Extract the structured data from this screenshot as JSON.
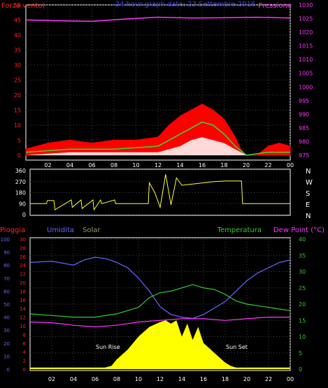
{
  "chart_data": [
    {
      "type": "line",
      "title": "24 hour graph date: 23 Settembre 2016",
      "left_label": "Forza vento(",
      "right_label": "Pressione",
      "x_ticks": [
        "02",
        "04",
        "06",
        "08",
        "10",
        "12",
        "14",
        "16",
        "18",
        "20",
        "22",
        "00"
      ],
      "y_left_ticks": [
        0,
        5,
        10,
        15,
        20,
        25,
        30,
        35,
        40,
        45,
        50
      ],
      "y_right_ticks": [
        975,
        980,
        985,
        990,
        995,
        1000,
        1005,
        1010,
        1015,
        1020,
        1025,
        1030
      ],
      "ylim_left": [
        0,
        50
      ],
      "ylim_right": [
        975,
        1030
      ],
      "pressure": {
        "color": "#ff33ff",
        "hours": [
          0,
          3,
          6,
          9,
          12,
          15,
          18,
          21,
          24
        ],
        "values": [
          1024.5,
          1024.2,
          1024.0,
          1024.8,
          1025.5,
          1025.2,
          1025.3,
          1025.5,
          1025.2
        ]
      },
      "gust": {
        "color": "#ff0000",
        "hours": [
          0,
          2,
          4,
          6,
          8,
          10,
          12,
          13,
          14,
          15,
          16,
          17,
          18,
          19,
          19.5,
          20,
          21,
          22,
          23,
          24
        ],
        "values": [
          2,
          4,
          5,
          4,
          5,
          5,
          6,
          10,
          13,
          15,
          17,
          15,
          12,
          6,
          2,
          0,
          0,
          3,
          4,
          3
        ]
      },
      "avg": {
        "color": "#33dd33",
        "hours": [
          0,
          4,
          8,
          12,
          13,
          14,
          15,
          16,
          17,
          18,
          19,
          20,
          22,
          24
        ],
        "values": [
          1,
          2,
          2,
          3,
          5,
          7,
          9,
          11,
          10,
          7,
          3,
          0,
          1,
          1
        ]
      },
      "low": {
        "color": "#ffffff",
        "hours": [
          0,
          4,
          8,
          12,
          14,
          15,
          16,
          17,
          18,
          19,
          20,
          22,
          24
        ],
        "values": [
          0,
          1,
          1,
          1,
          3,
          5,
          6,
          5,
          4,
          2,
          0,
          0,
          0
        ]
      }
    },
    {
      "type": "line",
      "y_ticks": [
        0,
        90,
        180,
        270,
        360
      ],
      "ylim": [
        0,
        360
      ],
      "right_labels": [
        "N",
        "W",
        "S",
        "E",
        "N"
      ],
      "direction": {
        "color": "#ffff33",
        "hours": [
          0,
          1.5,
          1.6,
          2.2,
          2.3,
          3.8,
          3.9,
          4.7,
          4.8,
          5.8,
          5.9,
          6.5,
          6.6,
          7.8,
          7.9,
          10.9,
          11,
          11.5,
          12,
          12.5,
          13,
          13.5,
          14,
          15,
          16,
          17,
          18,
          19,
          19.5,
          19.6,
          24
        ],
        "values": [
          90,
          90,
          115,
          115,
          40,
          120,
          60,
          120,
          50,
          120,
          40,
          120,
          90,
          120,
          90,
          90,
          260,
          180,
          60,
          330,
          80,
          300,
          240,
          250,
          260,
          270,
          275,
          275,
          275,
          90,
          90
        ]
      }
    },
    {
      "type": "area",
      "labels": {
        "rain": "Pioggia",
        "humidity": "Umidita",
        "solar": "Solar",
        "temperature": "Temperatura",
        "dew": "Dew Point (°C)"
      },
      "x_ticks": [
        "02",
        "04",
        "06",
        "08",
        "10",
        "12",
        "14",
        "16",
        "18",
        "20",
        "22",
        "00"
      ],
      "y_rain_ticks": [
        0,
        2,
        4,
        6,
        8,
        10,
        12,
        14,
        16,
        18,
        20,
        22,
        24,
        26,
        28,
        30
      ],
      "y_hum_ticks": [
        0,
        10,
        20,
        30,
        40,
        50,
        60,
        70,
        80,
        90,
        100
      ],
      "y_temp_ticks": [
        0,
        5,
        10,
        15,
        20,
        25,
        30,
        35,
        40
      ],
      "ylim_temp": [
        0,
        40
      ],
      "annotations": {
        "sunrise": "Sun Rise",
        "sunset": "Sun Set"
      },
      "humidity": {
        "color": "#6666ff",
        "hours": [
          0,
          2,
          4,
          5,
          6,
          7,
          8,
          9,
          10,
          11,
          12,
          13,
          14,
          15,
          16,
          17,
          18,
          19,
          20,
          21,
          22,
          23,
          24
        ],
        "values": [
          82,
          83,
          80,
          84,
          86,
          85,
          82,
          78,
          70,
          60,
          48,
          42,
          40,
          39,
          42,
          47,
          52,
          60,
          68,
          74,
          78,
          82,
          84
        ]
      },
      "temperature": {
        "color": "#33cc33",
        "hours": [
          0,
          2,
          4,
          6,
          8,
          9,
          10,
          11,
          12,
          13,
          14,
          15,
          16,
          17,
          18,
          19,
          20,
          21,
          22,
          23,
          24
        ],
        "values": [
          17,
          16.5,
          16,
          16,
          17,
          18,
          19,
          22,
          23.5,
          24,
          25,
          26,
          25,
          24.5,
          23,
          21,
          20,
          19.5,
          19,
          18.5,
          18
        ]
      },
      "dew": {
        "color": "#ff33ff",
        "hours": [
          0,
          2,
          4,
          6,
          8,
          10,
          12,
          14,
          16,
          18,
          20,
          22,
          24
        ],
        "values": [
          14.5,
          14.3,
          13.5,
          13,
          13.5,
          14.5,
          15,
          15.5,
          15.5,
          15,
          15.5,
          16,
          16
        ]
      },
      "solar": {
        "color": "#ffff00",
        "hours": [
          0,
          6.9,
          7.5,
          8,
          9,
          10,
          11,
          12,
          12.5,
          13,
          13.5,
          14,
          14.5,
          15,
          15.5,
          16,
          17,
          18,
          18.5,
          19,
          24
        ],
        "values": [
          0.5,
          0.5,
          1,
          3,
          6,
          10,
          13,
          14.5,
          15,
          14,
          15,
          10,
          14,
          9,
          13,
          8,
          5,
          2,
          1,
          0.5,
          0.5
        ]
      }
    }
  ]
}
